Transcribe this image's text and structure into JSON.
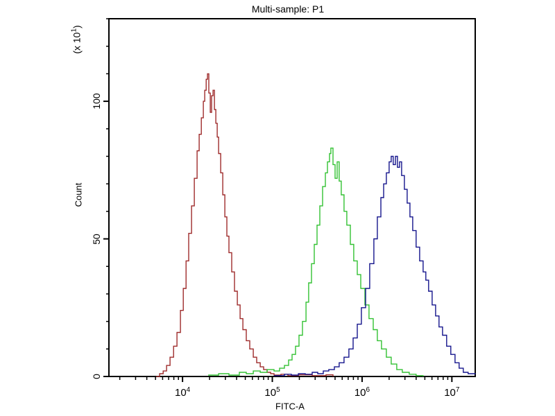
{
  "title": "Multi-sample: P1",
  "chart_data": {
    "type": "line",
    "subtype": "flow-cytometry-histogram-overlay",
    "title": "Multi-sample: P1",
    "xlabel": "FITC-A",
    "ylabel": "Count",
    "y_multiplier": {
      "prefix": "(x 10",
      "exp": "1",
      "suffix": ")"
    },
    "x_scale": "log10",
    "x_range_log10": [
      3.18,
      7.26
    ],
    "x_major_ticks": [
      {
        "log10": 4,
        "base": "10",
        "exp": "4"
      },
      {
        "log10": 5,
        "base": "10",
        "exp": "5"
      },
      {
        "log10": 6,
        "base": "10",
        "exp": "6"
      },
      {
        "log10": 7,
        "base": "10",
        "exp": "7"
      }
    ],
    "ylim": [
      0,
      130
    ],
    "y_major_ticks": [
      {
        "value": 0,
        "label": "0"
      },
      {
        "value": 50,
        "label": "50"
      },
      {
        "value": 100,
        "label": "100"
      }
    ],
    "y_minor_step": 10,
    "grid": false,
    "legend": "none",
    "frame_color": "#000000",
    "series": [
      {
        "name": "sample-red",
        "color": "#9e2b2b",
        "peak": {
          "x": 19000,
          "count": 110
        },
        "points_log10x_count": [
          [
            3.707,
            0
          ],
          [
            3.745,
            1
          ],
          [
            3.784,
            2
          ],
          [
            3.822,
            4
          ],
          [
            3.861,
            7
          ],
          [
            3.9,
            11
          ],
          [
            3.938,
            16
          ],
          [
            3.977,
            24
          ],
          [
            4.008,
            32
          ],
          [
            4.039,
            42
          ],
          [
            4.069,
            52
          ],
          [
            4.1,
            62
          ],
          [
            4.131,
            72
          ],
          [
            4.162,
            82
          ],
          [
            4.185,
            88
          ],
          [
            4.209,
            94
          ],
          [
            4.232,
            100
          ],
          [
            4.247,
            104
          ],
          [
            4.263,
            108
          ],
          [
            4.278,
            110
          ],
          [
            4.293,
            103
          ],
          [
            4.309,
            96
          ],
          [
            4.324,
            102
          ],
          [
            4.34,
            104
          ],
          [
            4.355,
            97
          ],
          [
            4.371,
            92
          ],
          [
            4.386,
            87
          ],
          [
            4.402,
            81
          ],
          [
            4.425,
            74
          ],
          [
            4.448,
            66
          ],
          [
            4.471,
            58
          ],
          [
            4.494,
            51
          ],
          [
            4.517,
            45
          ],
          [
            4.548,
            38
          ],
          [
            4.579,
            31
          ],
          [
            4.61,
            26
          ],
          [
            4.641,
            21
          ],
          [
            4.672,
            17
          ],
          [
            4.71,
            13
          ],
          [
            4.749,
            10
          ],
          [
            4.788,
            7
          ],
          [
            4.826,
            5
          ],
          [
            4.865,
            3.5
          ],
          [
            4.903,
            2.5
          ],
          [
            4.942,
            1.5
          ],
          [
            4.981,
            1
          ],
          [
            5.019,
            0.5
          ],
          [
            5.096,
            0.8
          ],
          [
            5.174,
            0.3
          ],
          [
            5.29,
            0.6
          ],
          [
            5.444,
            0.3
          ],
          [
            5.598,
            0.6
          ],
          [
            5.676,
            0
          ]
        ]
      },
      {
        "name": "sample-green",
        "color": "#32c132",
        "peak": {
          "x": 450000,
          "count": 83
        },
        "points_log10x_count": [
          [
            4.286,
            0.5
          ],
          [
            4.402,
            1
          ],
          [
            4.517,
            0.5
          ],
          [
            4.633,
            1.5
          ],
          [
            4.71,
            1
          ],
          [
            4.788,
            2
          ],
          [
            4.865,
            1.5
          ],
          [
            4.942,
            2.5
          ],
          [
            5.019,
            2
          ],
          [
            5.081,
            3
          ],
          [
            5.135,
            4
          ],
          [
            5.181,
            6
          ],
          [
            5.22,
            8
          ],
          [
            5.259,
            11
          ],
          [
            5.297,
            15
          ],
          [
            5.336,
            20
          ],
          [
            5.375,
            27
          ],
          [
            5.405,
            34
          ],
          [
            5.436,
            41
          ],
          [
            5.467,
            48
          ],
          [
            5.498,
            55
          ],
          [
            5.529,
            62
          ],
          [
            5.56,
            69
          ],
          [
            5.591,
            74
          ],
          [
            5.614,
            78
          ],
          [
            5.637,
            81
          ],
          [
            5.652,
            83
          ],
          [
            5.676,
            77
          ],
          [
            5.699,
            72
          ],
          [
            5.722,
            78
          ],
          [
            5.745,
            71
          ],
          [
            5.768,
            66
          ],
          [
            5.799,
            60
          ],
          [
            5.83,
            55
          ],
          [
            5.869,
            48
          ],
          [
            5.907,
            42
          ],
          [
            5.946,
            37
          ],
          [
            5.985,
            32
          ],
          [
            6.031,
            26
          ],
          [
            6.077,
            21
          ],
          [
            6.124,
            17
          ],
          [
            6.17,
            13
          ],
          [
            6.216,
            10
          ],
          [
            6.27,
            7
          ],
          [
            6.324,
            4.5
          ],
          [
            6.386,
            2.5
          ],
          [
            6.448,
            1.5
          ],
          [
            6.525,
            0.8
          ],
          [
            6.602,
            0.3
          ],
          [
            6.68,
            0
          ]
        ]
      },
      {
        "name": "sample-blue",
        "color": "#14148c",
        "peak": {
          "x": 2100000,
          "count": 80
        },
        "points_log10x_count": [
          [
            5.019,
            0.3
          ],
          [
            5.135,
            0.8
          ],
          [
            5.212,
            0.5
          ],
          [
            5.29,
            1
          ],
          [
            5.367,
            0.8
          ],
          [
            5.444,
            1.5
          ],
          [
            5.506,
            1
          ],
          [
            5.568,
            2
          ],
          [
            5.629,
            2.5
          ],
          [
            5.691,
            3.5
          ],
          [
            5.745,
            5
          ],
          [
            5.799,
            7
          ],
          [
            5.853,
            10
          ],
          [
            5.9,
            14
          ],
          [
            5.946,
            19
          ],
          [
            5.992,
            25
          ],
          [
            6.039,
            32
          ],
          [
            6.085,
            41
          ],
          [
            6.131,
            50
          ],
          [
            6.17,
            58
          ],
          [
            6.209,
            65
          ],
          [
            6.24,
            70
          ],
          [
            6.27,
            74
          ],
          [
            6.301,
            78
          ],
          [
            6.324,
            80
          ],
          [
            6.347,
            77
          ],
          [
            6.371,
            80
          ],
          [
            6.394,
            76
          ],
          [
            6.417,
            78
          ],
          [
            6.44,
            73
          ],
          [
            6.471,
            68
          ],
          [
            6.502,
            63
          ],
          [
            6.533,
            58
          ],
          [
            6.564,
            53
          ],
          [
            6.602,
            47
          ],
          [
            6.641,
            42
          ],
          [
            6.68,
            38
          ],
          [
            6.71,
            35
          ],
          [
            6.741,
            31
          ],
          [
            6.78,
            26
          ],
          [
            6.819,
            22
          ],
          [
            6.857,
            18
          ],
          [
            6.896,
            15
          ],
          [
            6.942,
            11
          ],
          [
            6.988,
            8
          ],
          [
            7.035,
            5
          ],
          [
            7.081,
            3
          ],
          [
            7.127,
            1.5
          ],
          [
            7.181,
            1
          ],
          [
            7.259,
            0.8
          ]
        ]
      }
    ]
  }
}
